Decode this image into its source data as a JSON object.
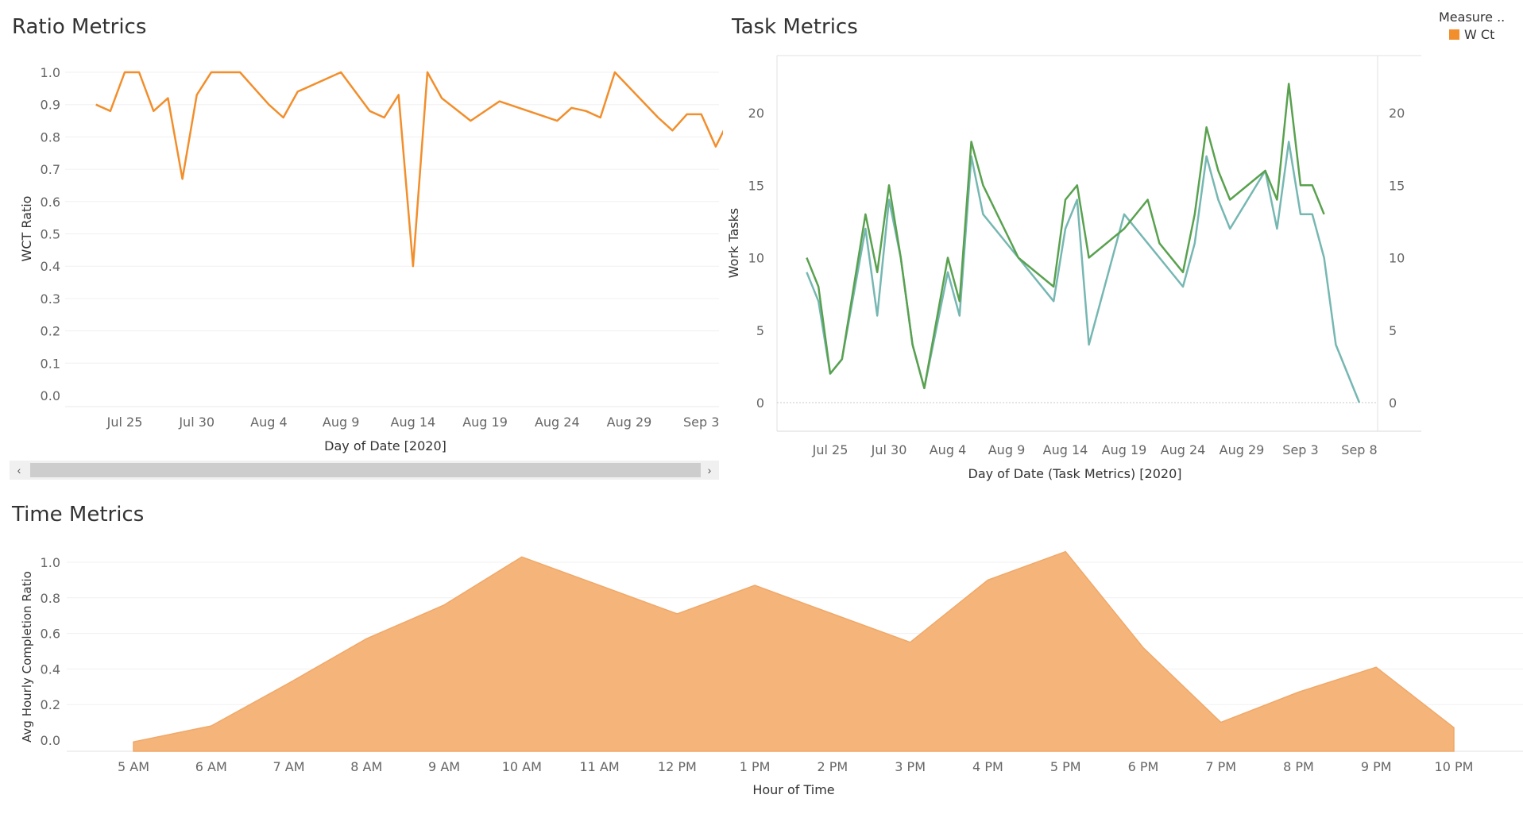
{
  "legend": {
    "title": "Measure ..",
    "items": [
      {
        "label": "W Ct",
        "color": "#f28e2b"
      }
    ]
  },
  "chart_data": [
    {
      "id": "ratio",
      "type": "line",
      "title": "Ratio Metrics",
      "xlabel": "Day of Date [2020]",
      "ylabel": "WCT Ratio",
      "x_ticks": [
        "Jul 25",
        "Jul 30",
        "Aug 4",
        "Aug 9",
        "Aug 14",
        "Aug 19",
        "Aug 24",
        "Aug 29",
        "Sep 3"
      ],
      "ylim": [
        0,
        1.0
      ],
      "y_ticks": [
        "0.0",
        "0.1",
        "0.2",
        "0.3",
        "0.4",
        "0.5",
        "0.6",
        "0.7",
        "0.8",
        "0.9",
        "1.0"
      ],
      "color": "#f28e2b",
      "series": [
        {
          "x": [
            "Jul 23",
            "Jul 24",
            "Jul 25",
            "Jul 26",
            "Jul 27",
            "Jul 28",
            "Jul 29",
            "Jul 30",
            "Jul 31",
            "Aug 1",
            "Aug 2",
            "Aug 3",
            "Aug 4",
            "Aug 5",
            "Aug 6",
            "Aug 9",
            "Aug 11",
            "Aug 12",
            "Aug 13",
            "Aug 14",
            "Aug 15",
            "Aug 16",
            "Aug 18",
            "Aug 20",
            "Aug 24",
            "Aug 25",
            "Aug 26",
            "Aug 27",
            "Aug 28",
            "Aug 31",
            "Sep 1",
            "Sep 2",
            "Sep 3",
            "Sep 4",
            "Sep 5"
          ],
          "values": [
            0.9,
            0.88,
            1.0,
            1.0,
            0.88,
            0.92,
            0.67,
            0.93,
            1.0,
            1.0,
            1.0,
            0.95,
            0.9,
            0.86,
            0.94,
            1.0,
            0.88,
            0.86,
            0.93,
            0.4,
            1.0,
            0.92,
            0.85,
            0.91,
            0.85,
            0.89,
            0.88,
            0.86,
            1.0,
            0.86,
            0.82,
            0.87,
            0.87,
            0.77,
            0.86
          ]
        }
      ]
    },
    {
      "id": "task",
      "type": "line",
      "title": "Task Metrics",
      "xlabel": "Day of Date (Task Metrics) [2020]",
      "ylabel": "Work Tasks",
      "x_ticks": [
        "Jul 25",
        "Jul 30",
        "Aug 4",
        "Aug 9",
        "Aug 14",
        "Aug 19",
        "Aug 24",
        "Aug 29",
        "Sep 3",
        "Sep 8"
      ],
      "ylim": [
        0,
        22
      ],
      "y_ticks": [
        "0",
        "5",
        "10",
        "15",
        "20"
      ],
      "series": [
        {
          "color": "#59a14f",
          "x": [
            "Jul 23",
            "Jul 24",
            "Jul 25",
            "Jul 26",
            "Jul 28",
            "Jul 29",
            "Jul 30",
            "Jul 31",
            "Aug 1",
            "Aug 2",
            "Aug 4",
            "Aug 5",
            "Aug 6",
            "Aug 7",
            "Aug 10",
            "Aug 13",
            "Aug 14",
            "Aug 15",
            "Aug 16",
            "Aug 19",
            "Aug 21",
            "Aug 22",
            "Aug 24",
            "Aug 25",
            "Aug 26",
            "Aug 27",
            "Aug 28",
            "Aug 31",
            "Sep 1",
            "Sep 2",
            "Sep 3",
            "Sep 4",
            "Sep 5"
          ],
          "values": [
            10,
            8,
            2,
            3,
            13,
            9,
            15,
            10,
            4,
            1,
            10,
            7,
            18,
            15,
            10,
            8,
            14,
            15,
            10,
            12,
            14,
            11,
            9,
            13,
            19,
            16,
            14,
            16,
            14,
            22,
            15,
            15,
            13
          ]
        },
        {
          "color": "#76b7b2",
          "x": [
            "Jul 23",
            "Jul 24",
            "Jul 25",
            "Jul 26",
            "Jul 28",
            "Jul 29",
            "Jul 30",
            "Jul 31",
            "Aug 1",
            "Aug 2",
            "Aug 4",
            "Aug 5",
            "Aug 6",
            "Aug 7",
            "Aug 10",
            "Aug 13",
            "Aug 14",
            "Aug 15",
            "Aug 16",
            "Aug 19",
            "Aug 21",
            "Aug 22",
            "Aug 24",
            "Aug 25",
            "Aug 26",
            "Aug 27",
            "Aug 28",
            "Aug 31",
            "Sep 1",
            "Sep 2",
            "Sep 3",
            "Sep 4",
            "Sep 5",
            "Sep 6",
            "Sep 8"
          ],
          "values": [
            9,
            7,
            2,
            3,
            12,
            6,
            14,
            10,
            4,
            1,
            9,
            6,
            17,
            13,
            10,
            7,
            12,
            14,
            4,
            13,
            11,
            10,
            8,
            11,
            17,
            14,
            12,
            16,
            12,
            18,
            13,
            13,
            10,
            4,
            0
          ]
        }
      ]
    },
    {
      "id": "time",
      "type": "area",
      "title": "Time Metrics",
      "xlabel": "Hour of Time",
      "ylabel": "Avg Hourly Completion Ratio",
      "categories": [
        "5 AM",
        "6 AM",
        "7 AM",
        "8 AM",
        "9 AM",
        "10 AM",
        "11 AM",
        "12 PM",
        "1 PM",
        "2 PM",
        "3 PM",
        "4 PM",
        "5 PM",
        "6 PM",
        "7 PM",
        "8 PM",
        "9 PM",
        "10 PM"
      ],
      "values": [
        -0.01,
        0.08,
        0.32,
        0.57,
        0.76,
        1.03,
        0.87,
        0.71,
        0.87,
        0.71,
        0.55,
        0.9,
        1.06,
        0.52,
        0.1,
        0.27,
        0.41,
        0.07
      ],
      "ylim": [
        0,
        1.0
      ],
      "y_ticks": [
        "0.0",
        "0.2",
        "0.4",
        "0.6",
        "0.8",
        "1.0"
      ],
      "color": "#f5b57a"
    }
  ]
}
